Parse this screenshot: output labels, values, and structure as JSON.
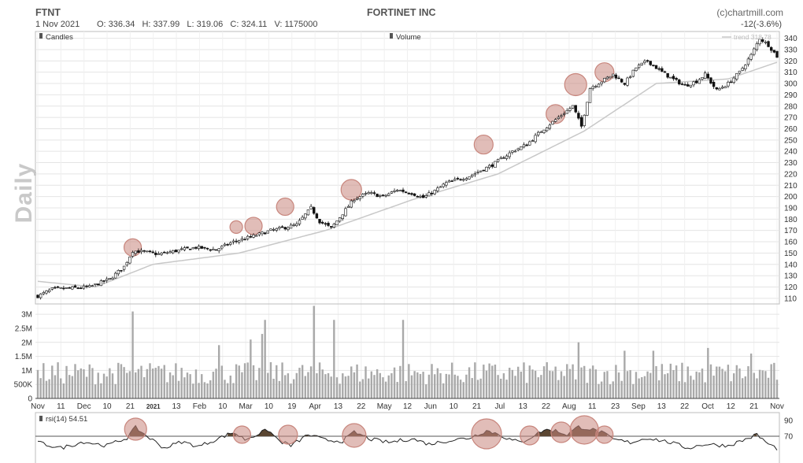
{
  "header": {
    "ticker": "FTNT",
    "company": "FORTINET INC",
    "source": "(c)chartmill.com",
    "date": "1 Nov 2021",
    "ohlcv": "O: 336.34   H: 337.99   L: 319.06   C: 324.11   V: 1175000",
    "change": "-12(-3.6%)",
    "period_label": "Daily"
  },
  "legend": {
    "candles": "Candles",
    "volume": "Volume",
    "trend": "trend 318.78",
    "rsi": "rsi(14) 54.51"
  },
  "colors": {
    "candle": "#111111",
    "trend_line": "#c8c8c8",
    "volume_bar": "#a9a9a9",
    "highlight_circle": "#c8867d",
    "rsi_fill": "#5a4632",
    "grid": "#e4e4e4"
  },
  "chart_data": [
    {
      "type": "candlestick",
      "title": "FORTINET INC",
      "ylim": [
        105,
        346
      ],
      "yticks": [
        110,
        120,
        130,
        140,
        150,
        160,
        170,
        180,
        190,
        200,
        210,
        220,
        230,
        240,
        250,
        260,
        270,
        280,
        290,
        300,
        310,
        320,
        330,
        340
      ],
      "xticks": [
        "Nov",
        "11",
        "Dec",
        "10",
        "21",
        "2021",
        "13",
        "Feb",
        "10",
        "Mar",
        "10",
        "19",
        "Apr",
        "13",
        "22",
        "May",
        "12",
        "Jun",
        "10",
        "21",
        "Jul",
        "13",
        "22",
        "Aug",
        "11",
        "23",
        "Sep",
        "13",
        "22",
        "Oct",
        "12",
        "21",
        "Nov"
      ],
      "close_anchors": [
        [
          0,
          112
        ],
        [
          5,
          118
        ],
        [
          12,
          119
        ],
        [
          18,
          120
        ],
        [
          25,
          127
        ],
        [
          30,
          138
        ],
        [
          33,
          152
        ],
        [
          37,
          151
        ],
        [
          42,
          149
        ],
        [
          48,
          152
        ],
        [
          55,
          155
        ],
        [
          62,
          153
        ],
        [
          68,
          160
        ],
        [
          75,
          165
        ],
        [
          81,
          170
        ],
        [
          85,
          172
        ],
        [
          90,
          175
        ],
        [
          95,
          190
        ],
        [
          98,
          178
        ],
        [
          102,
          172
        ],
        [
          106,
          185
        ],
        [
          110,
          198
        ],
        [
          115,
          203
        ],
        [
          120,
          200
        ],
        [
          125,
          206
        ],
        [
          130,
          203
        ],
        [
          134,
          199
        ],
        [
          138,
          205
        ],
        [
          142,
          212
        ],
        [
          150,
          218
        ],
        [
          158,
          228
        ],
        [
          165,
          240
        ],
        [
          170,
          246
        ],
        [
          175,
          258
        ],
        [
          180,
          268
        ],
        [
          186,
          280
        ],
        [
          189,
          262
        ],
        [
          192,
          296
        ],
        [
          196,
          302
        ],
        [
          200,
          308
        ],
        [
          204,
          300
        ],
        [
          208,
          314
        ],
        [
          212,
          320
        ],
        [
          216,
          312
        ],
        [
          220,
          305
        ],
        [
          225,
          298
        ],
        [
          229,
          302
        ],
        [
          232,
          308
        ],
        [
          236,
          294
        ],
        [
          240,
          300
        ],
        [
          244,
          310
        ],
        [
          248,
          325
        ],
        [
          251,
          340
        ],
        [
          254,
          334
        ],
        [
          257,
          324
        ]
      ],
      "trend": [
        [
          0,
          125
        ],
        [
          20,
          120
        ],
        [
          40,
          140
        ],
        [
          70,
          150
        ],
        [
          100,
          170
        ],
        [
          130,
          197
        ],
        [
          160,
          220
        ],
        [
          190,
          258
        ],
        [
          215,
          300
        ],
        [
          240,
          304
        ],
        [
          257,
          318.78
        ]
      ],
      "highlights": [
        {
          "x": 33,
          "y": 155,
          "r": 11
        },
        {
          "x": 69,
          "y": 173,
          "r": 8
        },
        {
          "x": 75,
          "y": 174,
          "r": 11
        },
        {
          "x": 86,
          "y": 191,
          "r": 11
        },
        {
          "x": 109,
          "y": 206,
          "r": 13
        },
        {
          "x": 155,
          "y": 246,
          "r": 12
        },
        {
          "x": 180,
          "y": 273,
          "r": 12
        },
        {
          "x": 187,
          "y": 299,
          "r": 14
        },
        {
          "x": 197,
          "y": 310,
          "r": 12
        }
      ]
    },
    {
      "type": "bar",
      "name": "Volume",
      "ylim": [
        0,
        3200000
      ],
      "yticks": [
        {
          "v": 0,
          "label": "0"
        },
        {
          "v": 500000,
          "label": "500K"
        },
        {
          "v": 1000000,
          "label": "1M"
        },
        {
          "v": 1500000,
          "label": "1.5M"
        },
        {
          "v": 2000000,
          "label": "2M"
        },
        {
          "v": 2500000,
          "label": "2.5M"
        },
        {
          "v": 3000000,
          "label": "3M"
        }
      ],
      "spikes": [
        [
          33,
          3100000
        ],
        [
          63,
          1900000
        ],
        [
          74,
          2100000
        ],
        [
          78,
          2300000
        ],
        [
          79,
          2800000
        ],
        [
          96,
          3300000
        ],
        [
          103,
          2800000
        ],
        [
          127,
          2800000
        ],
        [
          188,
          2000000
        ],
        [
          204,
          1700000
        ],
        [
          214,
          1700000
        ],
        [
          233,
          1800000
        ],
        [
          248,
          1600000
        ]
      ]
    },
    {
      "type": "line",
      "name": "rsi(14)",
      "ylim": [
        30,
        100
      ],
      "yticks": [
        70,
        90
      ],
      "threshold": 70,
      "series": [
        [
          0,
          62
        ],
        [
          8,
          55
        ],
        [
          16,
          63
        ],
        [
          24,
          58
        ],
        [
          31,
          68
        ],
        [
          34,
          81
        ],
        [
          38,
          70
        ],
        [
          44,
          55
        ],
        [
          50,
          63
        ],
        [
          56,
          57
        ],
        [
          62,
          66
        ],
        [
          68,
          75
        ],
        [
          72,
          66
        ],
        [
          76,
          72
        ],
        [
          80,
          78
        ],
        [
          84,
          64
        ],
        [
          88,
          58
        ],
        [
          94,
          72
        ],
        [
          100,
          65
        ],
        [
          106,
          64
        ],
        [
          110,
          75
        ],
        [
          116,
          66
        ],
        [
          122,
          62
        ],
        [
          130,
          67
        ],
        [
          136,
          60
        ],
        [
          142,
          64
        ],
        [
          150,
          68
        ],
        [
          156,
          77
        ],
        [
          160,
          73
        ],
        [
          164,
          66
        ],
        [
          168,
          62
        ],
        [
          172,
          70
        ],
        [
          176,
          78
        ],
        [
          180,
          77
        ],
        [
          184,
          72
        ],
        [
          188,
          82
        ],
        [
          192,
          79
        ],
        [
          196,
          75
        ],
        [
          200,
          66
        ],
        [
          206,
          62
        ],
        [
          212,
          68
        ],
        [
          220,
          62
        ],
        [
          226,
          55
        ],
        [
          232,
          60
        ],
        [
          240,
          58
        ],
        [
          246,
          66
        ],
        [
          250,
          72
        ],
        [
          254,
          60
        ],
        [
          257,
          54.51
        ]
      ],
      "highlights": [
        {
          "x": 34,
          "y": 79,
          "r": 14
        },
        {
          "x": 71,
          "y": 72,
          "r": 11
        },
        {
          "x": 87,
          "y": 72,
          "r": 12
        },
        {
          "x": 110,
          "y": 71,
          "r": 15
        },
        {
          "x": 156,
          "y": 73,
          "r": 19
        },
        {
          "x": 171,
          "y": 71,
          "r": 12
        },
        {
          "x": 182,
          "y": 75,
          "r": 13
        },
        {
          "x": 190,
          "y": 78,
          "r": 18
        },
        {
          "x": 197,
          "y": 72,
          "r": 11
        }
      ]
    }
  ]
}
